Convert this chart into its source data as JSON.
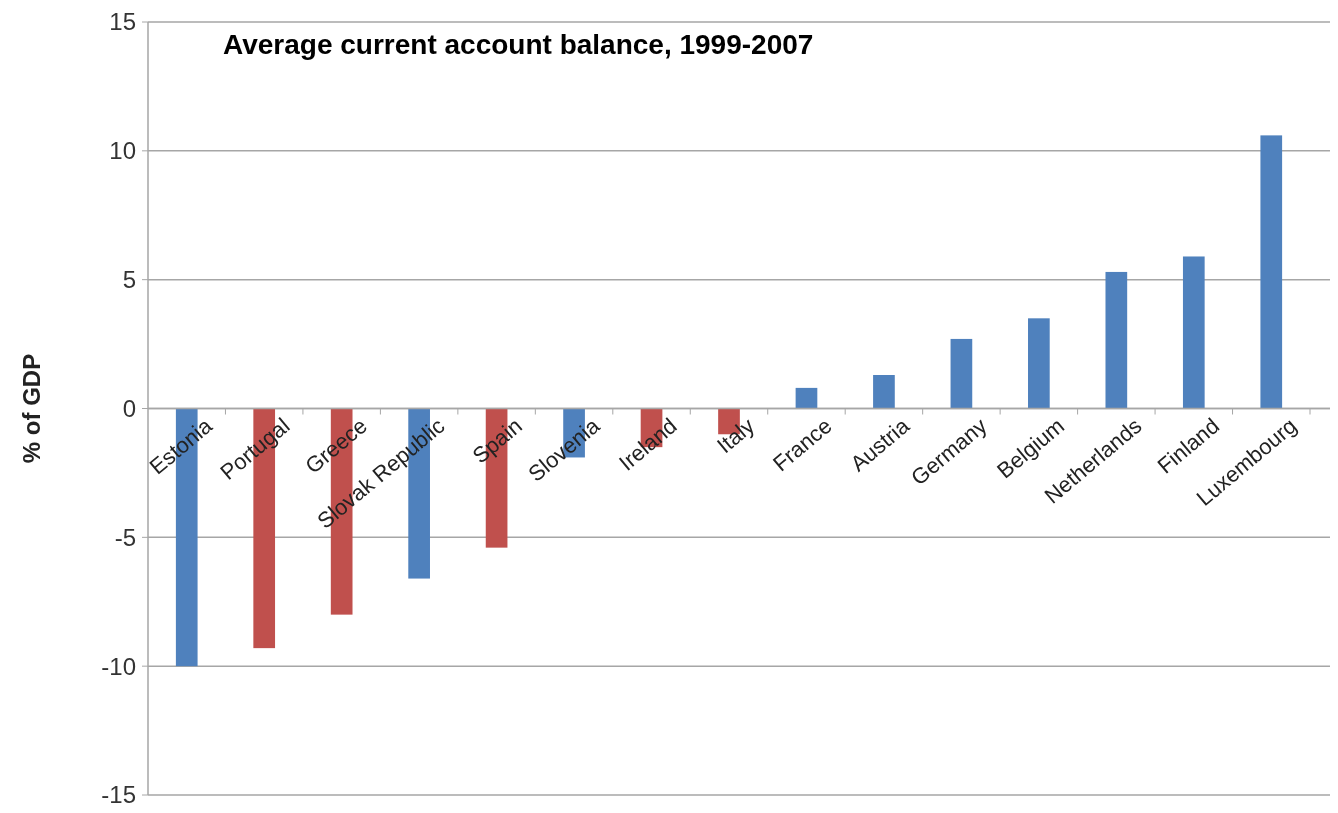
{
  "chart_data": {
    "type": "bar",
    "title": "Average current account balance, 1999-2007",
    "ylabel": "% of GDP",
    "categories": [
      "Estonia",
      "Portugal",
      "Greece",
      "Slovak Republic",
      "Spain",
      "Slovenia",
      "Ireland",
      "Italy",
      "France",
      "Austria",
      "Germany",
      "Belgium",
      "Netherlands",
      "Finland",
      "Luxembourg"
    ],
    "values": [
      -10.0,
      -9.3,
      -8.0,
      -6.6,
      -5.4,
      -1.9,
      -1.5,
      -1.0,
      0.8,
      1.3,
      2.7,
      3.5,
      5.3,
      5.9,
      10.6
    ],
    "colors": [
      "#4f81bd",
      "#c0504d",
      "#c0504d",
      "#4f81bd",
      "#c0504d",
      "#4f81bd",
      "#c0504d",
      "#c0504d",
      "#4f81bd",
      "#4f81bd",
      "#4f81bd",
      "#4f81bd",
      "#4f81bd",
      "#4f81bd",
      "#4f81bd"
    ],
    "ylim": [
      -15,
      15
    ],
    "yticks": [
      -15,
      -10,
      -5,
      0,
      5,
      10,
      15
    ],
    "grid": "y"
  }
}
